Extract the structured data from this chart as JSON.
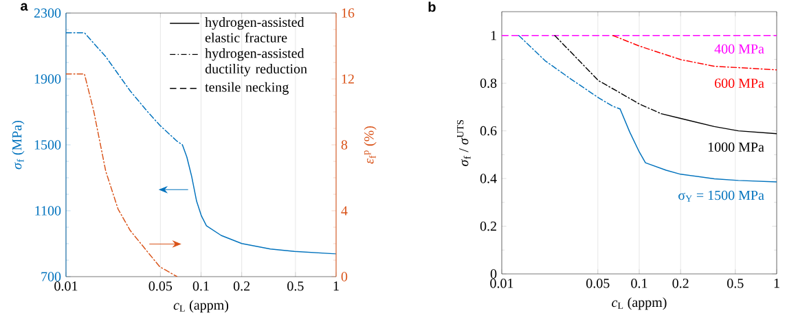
{
  "chart_data": [
    {
      "type": "line",
      "title": "a",
      "xlabel": "*c*$_{L}$ (appm)",
      "ylabel": "*σ*$_{f}$ (MPa)",
      "y2label": "*ε*$_{f}$$^{p}$ (%)",
      "log": "x",
      "grid": "x",
      "xlim": [
        0.01,
        1
      ],
      "xticks": [
        0.01,
        0.05,
        0.1,
        0.2,
        0.5,
        1
      ],
      "ylim": [
        700,
        2300
      ],
      "yticks": [
        700,
        1100,
        1500,
        1900,
        2300
      ],
      "y2lim": [
        0,
        16
      ],
      "y2ticks": [
        0,
        4,
        8,
        12,
        16
      ],
      "annotations": [
        "hydrogen-assisted elastic fracture",
        "hydrogen-assisted ductility reduction",
        "tensile necking"
      ],
      "series": [
        {
          "color": "#0072bd",
          "line_style": "dashdot",
          "x": [
            0.01,
            0.0137,
            0.0197,
            0.0299,
            0.0402,
            0.0495,
            0.0664,
            0.0728
          ],
          "values": [
            2180,
            2180,
            2035,
            1827,
            1701,
            1619,
            1522,
            1500
          ]
        },
        {
          "color": "#0072bd",
          "line_style": "solid",
          "x": [
            0.0728,
            0.0785,
            0.0853,
            0.0927,
            0.1006,
            0.1096,
            0.141,
            0.2,
            0.326,
            0.492,
            1
          ],
          "values": [
            1500,
            1426,
            1307,
            1158,
            1069,
            1009,
            950,
            901,
            868,
            853,
            838
          ]
        },
        {
          "color": "#d95319",
          "line_style": "dashdot",
          "axis": "y2",
          "x": [
            0.01,
            0.0137,
            0.016,
            0.0197,
            0.0243,
            0.0299,
            0.0402,
            0.0495,
            0.0664
          ],
          "values": [
            12.3,
            12.3,
            10.1,
            6.4,
            4.1,
            2.8,
            1.5,
            0.6,
            0
          ]
        }
      ]
    },
    {
      "type": "line",
      "title": "b",
      "xlabel": "*c*$_{L}$ (appm)",
      "ylabel": "*σ*$_{f}$ / *σ*$^{UTS}$",
      "log": "x",
      "grid": "x",
      "xlim": [
        0.01,
        1
      ],
      "xticks": [
        0.01,
        0.05,
        0.1,
        0.2,
        0.5,
        1
      ],
      "ylim": [
        0,
        1.1
      ],
      "yticks": [
        0,
        0.2,
        0.4,
        0.6,
        0.8,
        1
      ],
      "series": [
        {
          "name": "400 MPa",
          "color": "#ff00ff",
          "line_style": "dashed",
          "x": [
            0.01,
            1
          ],
          "values": [
            1,
            1
          ]
        },
        {
          "name": "600 MPa",
          "color": "#ff0000",
          "line_style": "dashdot",
          "x": [
            0.0643,
            0.1,
            0.2,
            0.352,
            1
          ],
          "values": [
            1,
            0.956,
            0.899,
            0.871,
            0.856
          ]
        },
        {
          "color": "#000000",
          "line_style": "dashdot",
          "x": [
            0.0243,
            0.0505,
            0.0698,
            0.1,
            0.1445
          ],
          "values": [
            1,
            0.811,
            0.765,
            0.713,
            0.672
          ]
        },
        {
          "name": "1000 MPa",
          "color": "#000000",
          "line_style": "solid",
          "x": [
            0.1445,
            0.2,
            0.352,
            0.527,
            1
          ],
          "values": [
            0.672,
            0.652,
            0.618,
            0.6,
            0.588
          ]
        },
        {
          "color": "#0072bd",
          "line_style": "dashdot",
          "x": [
            0.0133,
            0.0207,
            0.031,
            0.0505,
            0.0643,
            0.0726
          ],
          "values": [
            1,
            0.894,
            0.822,
            0.739,
            0.703,
            0.692
          ]
        },
        {
          "name": "σ$_{Y}$ = 1500 MPa",
          "color": "#0072bd",
          "line_style": "solid",
          "x": [
            0.0726,
            0.0853,
            0.1,
            0.111,
            0.157,
            0.2,
            0.352,
            0.527,
            1
          ],
          "values": [
            0.692,
            0.595,
            0.512,
            0.466,
            0.435,
            0.418,
            0.399,
            0.392,
            0.386
          ]
        }
      ]
    }
  ]
}
